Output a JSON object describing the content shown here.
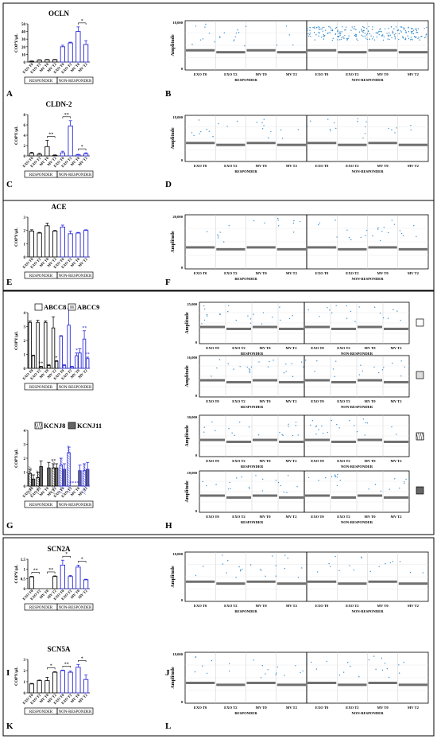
{
  "groups": {
    "responder": "RESPONDER",
    "nonresponder": "NON-RESPONDER"
  },
  "x_categories": [
    "EXO T0",
    "EXO T2",
    "MV T0",
    "MV T2",
    "EXO T0",
    "EXO T2",
    "MV T0",
    "MV T2"
  ],
  "amplitude_label": "Amplitude",
  "panel_letters": [
    "A",
    "B",
    "C",
    "D",
    "E",
    "F",
    "G",
    "H",
    "I",
    "J",
    "K",
    "L"
  ],
  "colors": {
    "responder": "#111111",
    "nonresponder": "#2b2bdc",
    "ddpcr_dots": "#3a8fd0",
    "frame": "#000000"
  },
  "chart_data": [
    {
      "id": "A",
      "type": "bar",
      "title": "OCLN",
      "ylabel": "COPY/µL",
      "ylim": [
        0,
        50
      ],
      "yticks": [
        0,
        10,
        20,
        30,
        40,
        50
      ],
      "values": [
        1,
        2.5,
        3,
        3,
        20,
        25,
        40,
        23
      ],
      "errors": [
        0.5,
        0.5,
        0.5,
        0.5,
        2,
        1,
        6,
        5
      ],
      "significance": [
        {
          "from": 6,
          "to": 7,
          "label": "*"
        }
      ]
    },
    {
      "id": "C",
      "type": "bar",
      "title": "CLDN-2",
      "ylabel": "COPY/µL",
      "ylim": [
        0,
        8
      ],
      "yticks": [
        0,
        2,
        4,
        6,
        8
      ],
      "values": [
        0.5,
        0.3,
        1.8,
        0.1,
        0.6,
        5.8,
        0.2,
        0.4
      ],
      "errors": [
        0.2,
        0.2,
        1.2,
        0.1,
        0.3,
        1.0,
        0.1,
        0.2
      ],
      "significance": [
        {
          "from": 2,
          "to": 3,
          "label": "**"
        },
        {
          "from": 4,
          "to": 5,
          "label": "**"
        },
        {
          "from": 6,
          "to": 7,
          "label": "*"
        }
      ]
    },
    {
      "id": "E",
      "type": "bar",
      "title": "ACE",
      "ylabel": "COPY/µL",
      "ylim": [
        0,
        3
      ],
      "yticks": [
        0,
        1,
        2,
        3
      ],
      "values": [
        1.95,
        1.8,
        2.35,
        1.95,
        2.25,
        1.75,
        1.8,
        2.0
      ],
      "errors": [
        0.1,
        0.05,
        0.2,
        0.05,
        0.15,
        0.2,
        0.05,
        0.05
      ],
      "significance": []
    },
    {
      "id": "G1",
      "type": "bar",
      "ylabel": "COPY/µL",
      "ylim": [
        0,
        4
      ],
      "yticks": [
        0,
        1,
        2,
        3,
        4
      ],
      "series": [
        {
          "name": "ABCC8",
          "values": [
            3.3,
            3.3,
            3.3,
            2.9,
            2.3,
            3.1,
            0.9,
            2.1
          ],
          "errors": [
            0.1,
            0.15,
            0.1,
            0.8,
            0.05,
            1.2,
            0.2,
            0.6
          ]
        },
        {
          "name": "ABCC9",
          "values": [
            0.9,
            0.1,
            0.2,
            0.5,
            0.2,
            0.1,
            1.1,
            0.7
          ],
          "errors": [
            0.05,
            0.05,
            0.05,
            0.05,
            0.05,
            0.05,
            0.3,
            0.1
          ]
        }
      ],
      "stars": [
        {
          "bar": 1,
          "series": 1,
          "label": "**"
        },
        {
          "bar": 3,
          "series": 1,
          "label": "*"
        },
        {
          "bar": 6,
          "series": 0,
          "label": "*"
        },
        {
          "bar": 7,
          "series": 0,
          "label": "**"
        },
        {
          "bar": 7,
          "series": 1,
          "label": "**"
        }
      ]
    },
    {
      "id": "G2",
      "type": "bar",
      "ylabel": "COPY/µL",
      "ylim": [
        0,
        4
      ],
      "yticks": [
        0,
        1,
        2,
        3,
        4
      ],
      "series": [
        {
          "name": "KCNJ8",
          "values": [
            0.9,
            0.6,
            0,
            1.3,
            1.5,
            2.4,
            0,
            1.1
          ],
          "errors": [
            0.3,
            0.4,
            0,
            0.3,
            0.5,
            0.4,
            0,
            0.5
          ]
        },
        {
          "name": "KCNJ11",
          "values": [
            0.5,
            1.4,
            1.3,
            1.3,
            1.2,
            0,
            1.1,
            1.2
          ],
          "errors": [
            0.3,
            0.4,
            0.4,
            0.3,
            0.4,
            0,
            0.4,
            0.5
          ]
        }
      ],
      "stars": [
        {
          "bar": 3,
          "series": 0,
          "label": "**"
        },
        {
          "bar": 5,
          "series": 1,
          "label": "**"
        },
        {
          "bar": 6,
          "series": 0,
          "label": "**"
        }
      ]
    },
    {
      "id": "I",
      "type": "bar",
      "title": "SCN2A",
      "ylabel": "COPY/µL",
      "ylim": [
        0,
        1.5
      ],
      "yticks": [
        0,
        0.5,
        1,
        1.5
      ],
      "values": [
        0.6,
        0,
        0,
        0.62,
        1.2,
        0.62,
        1.1,
        0.45
      ],
      "errors": [
        0.03,
        0,
        0,
        0.03,
        0.25,
        0.05,
        0.1,
        0.03
      ],
      "significance": [
        {
          "from": 0,
          "to": 1,
          "label": "**"
        },
        {
          "from": 2,
          "to": 3,
          "label": "**"
        },
        {
          "from": 4,
          "to": 5,
          "label": "*"
        },
        {
          "from": 6,
          "to": 7,
          "label": "*"
        }
      ]
    },
    {
      "id": "K",
      "type": "bar",
      "title": "SCN5A",
      "ylabel": "COPY/µL",
      "ylim": [
        0,
        3
      ],
      "yticks": [
        0,
        1,
        2,
        3
      ],
      "values": [
        0.8,
        1.1,
        1.1,
        1.85,
        2.0,
        1.85,
        2.3,
        1.2
      ],
      "errors": [
        0.05,
        0.05,
        0.3,
        0.05,
        0.05,
        0.1,
        0.25,
        0.4
      ],
      "significance": [
        {
          "from": 2,
          "to": 3,
          "label": "*"
        },
        {
          "from": 4,
          "to": 5,
          "label": "**"
        },
        {
          "from": 6,
          "to": 7,
          "label": "*"
        }
      ]
    }
  ],
  "ddpcr_panels": [
    {
      "id": "B",
      "ymax": "18,000",
      "ymid": "",
      "ymin": "0",
      "dense": true
    },
    {
      "id": "D",
      "ymax": "18,000",
      "ymin": "0",
      "dense": false
    },
    {
      "id": "F",
      "ymax": "20,000",
      "ymin": "0",
      "dense": false
    },
    {
      "id": "H1",
      "ymax": "25,000",
      "ymin": "0",
      "dense": false
    },
    {
      "id": "H2",
      "ymax": "16,000",
      "ymin": "0",
      "dense": false
    },
    {
      "id": "H3",
      "ymax": "30,000",
      "ymin": "0",
      "dense": false
    },
    {
      "id": "H4",
      "ymax": "18,000",
      "ymin": "0",
      "dense": false
    },
    {
      "id": "J",
      "ymax": "18,000",
      "ymin": "0",
      "dense": false
    },
    {
      "id": "L",
      "ymax": "18,000",
      "ymin": "0",
      "dense": false
    }
  ]
}
